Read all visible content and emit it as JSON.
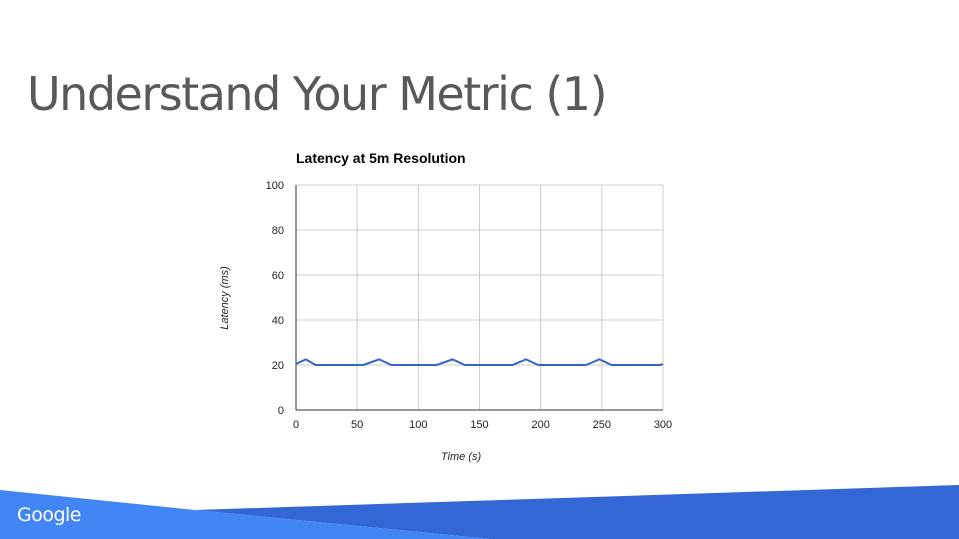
{
  "slide": {
    "title": "Understand Your Metric (1)",
    "logo": "Google"
  },
  "colors": {
    "line": "#3366cc",
    "footer_light": "#4285f4",
    "footer_dark": "#3367d6"
  },
  "chart_data": {
    "type": "line",
    "title": "Latency at 5m Resolution",
    "xlabel": "Time (s)",
    "ylabel": "Latency (ms)",
    "xlim": [
      0,
      300
    ],
    "ylim": [
      0,
      100
    ],
    "xticks": [
      0,
      50,
      100,
      150,
      200,
      250,
      300
    ],
    "yticks": [
      0,
      20,
      40,
      60,
      80,
      100
    ],
    "grid": true,
    "series": [
      {
        "x": [
          0,
          8,
          16,
          55,
          68,
          78,
          115,
          128,
          138,
          177,
          188,
          198,
          237,
          248,
          258,
          298,
          300
        ],
        "y": [
          20.5,
          22.5,
          20,
          20,
          22.5,
          20,
          20,
          22.5,
          20,
          20,
          22.5,
          20,
          20,
          22.5,
          20,
          20,
          20.5
        ]
      }
    ]
  }
}
